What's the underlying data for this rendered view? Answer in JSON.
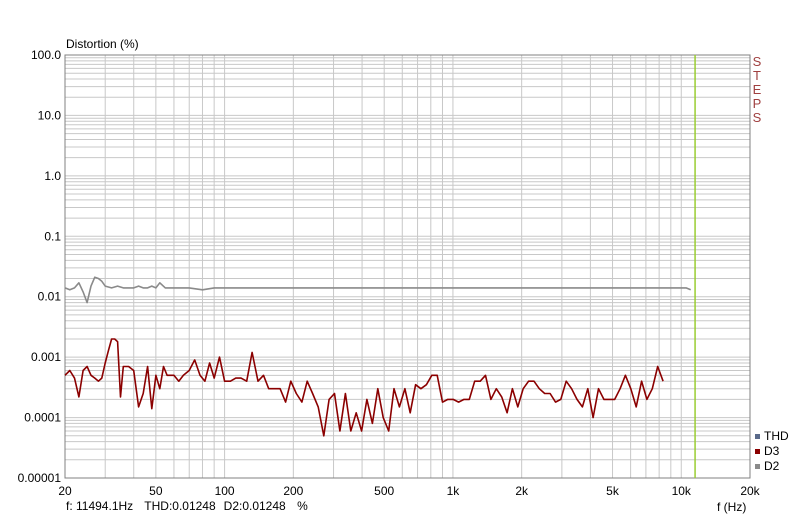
{
  "chart_data": {
    "type": "line",
    "title": "Distortion (%)",
    "xlabel": "f (Hz)",
    "ylabel": "Distortion (%)",
    "x_scale": "log",
    "y_scale": "log",
    "xlim": [
      20,
      20000
    ],
    "ylim": [
      1e-05,
      100
    ],
    "x_ticks": [
      20,
      50,
      100,
      200,
      500,
      1000,
      2000,
      5000,
      10000,
      20000
    ],
    "x_tick_labels": [
      "20",
      "50",
      "100",
      "200",
      "500",
      "1k",
      "2k",
      "5k",
      "10k",
      "20k"
    ],
    "y_ticks": [
      1e-05,
      0.0001,
      0.001,
      0.01,
      0.1,
      1,
      10,
      100
    ],
    "y_tick_labels": [
      "0.00001",
      "0.0001",
      "0.001",
      "0.01",
      "0.1",
      "1.0",
      "10.0",
      "100.0"
    ],
    "grid": true,
    "legend_position": "bottom-right",
    "side_label": "STEPS",
    "cursor_x": 11494.1,
    "series": [
      {
        "name": "THD",
        "color": "#5a6a8a",
        "x": [],
        "y": []
      },
      {
        "name": "D3",
        "color": "#8b0000",
        "x": [
          20,
          21,
          22,
          23,
          24,
          25,
          26,
          27,
          28,
          29,
          30,
          31,
          32,
          33,
          34,
          35,
          36,
          38,
          40,
          42,
          44,
          46,
          48,
          50,
          52,
          54,
          56,
          58,
          60,
          63,
          66,
          70,
          74,
          78,
          82,
          86,
          90,
          95,
          100,
          106,
          112,
          118,
          125,
          132,
          140,
          148,
          156,
          165,
          175,
          185,
          195,
          206,
          218,
          230,
          243,
          257,
          272,
          287,
          303,
          320,
          338,
          357,
          377,
          398,
          420,
          444,
          469,
          495,
          523,
          552,
          583,
          616,
          650,
          686,
          724,
          765,
          808,
          853,
          900,
          950,
          1003,
          1059,
          1118,
          1180,
          1246,
          1316,
          1389,
          1467,
          1549,
          1635,
          1726,
          1822,
          1924,
          2031,
          2144,
          2264,
          2390,
          2523,
          2664,
          2812,
          2969,
          3135,
          3310,
          3494,
          3689,
          3895,
          4112,
          4341,
          4583,
          4839,
          5109,
          5394,
          5694,
          6012,
          6347,
          6701,
          7074,
          7469,
          7885,
          8325
        ],
        "y": [
          0.0005,
          0.0006,
          0.00045,
          0.00022,
          0.0006,
          0.0007,
          0.0005,
          0.00045,
          0.0004,
          0.00045,
          0.0008,
          0.0013,
          0.002,
          0.002,
          0.0018,
          0.00022,
          0.0007,
          0.0007,
          0.0006,
          0.00015,
          0.00025,
          0.0007,
          0.00014,
          0.0005,
          0.0003,
          0.0007,
          0.0005,
          0.0005,
          0.0005,
          0.0004,
          0.0005,
          0.0006,
          0.0009,
          0.0005,
          0.0004,
          0.0008,
          0.00045,
          0.001,
          0.0004,
          0.0004,
          0.00045,
          0.00045,
          0.0004,
          0.0012,
          0.0004,
          0.0005,
          0.0003,
          0.0003,
          0.0003,
          0.00018,
          0.0004,
          0.00025,
          0.00018,
          0.0004,
          0.00025,
          0.00015,
          5e-05,
          0.0002,
          0.00025,
          6e-05,
          0.00025,
          6e-05,
          0.00012,
          6e-05,
          0.0002,
          8e-05,
          0.0003,
          0.0001,
          6e-05,
          0.0003,
          0.00015,
          0.0003,
          0.00012,
          0.00035,
          0.0003,
          0.00035,
          0.0005,
          0.0005,
          0.00018,
          0.0002,
          0.0002,
          0.00018,
          0.0002,
          0.0002,
          0.0004,
          0.0004,
          0.0005,
          0.0002,
          0.0003,
          0.00022,
          0.00012,
          0.0003,
          0.00015,
          0.0003,
          0.0004,
          0.0004,
          0.0003,
          0.00025,
          0.00025,
          0.00018,
          0.0002,
          0.0004,
          0.0003,
          0.0002,
          0.00015,
          0.0003,
          0.0001,
          0.0003,
          0.0002,
          0.0002,
          0.0002,
          0.0003,
          0.0005,
          0.0003,
          0.00015,
          0.0004,
          0.0002,
          0.0003,
          0.0007,
          0.0004
        ]
      },
      {
        "name": "D2",
        "color": "#8a8a8a",
        "x": [
          20,
          21,
          22,
          23,
          24,
          25,
          26,
          27,
          28,
          29,
          30,
          32,
          34,
          36,
          38,
          40,
          42,
          44,
          46,
          48,
          50,
          52,
          55,
          60,
          70,
          80,
          90,
          100,
          120,
          150,
          200,
          300,
          500,
          700,
          1000,
          1500,
          2000,
          3000,
          5000,
          7000,
          9000,
          10000,
          10500,
          11000
        ],
        "y": [
          0.014,
          0.013,
          0.014,
          0.017,
          0.012,
          0.008,
          0.015,
          0.021,
          0.02,
          0.018,
          0.015,
          0.014,
          0.015,
          0.014,
          0.014,
          0.014,
          0.015,
          0.014,
          0.014,
          0.015,
          0.014,
          0.017,
          0.014,
          0.014,
          0.014,
          0.013,
          0.014,
          0.014,
          0.014,
          0.014,
          0.014,
          0.014,
          0.014,
          0.014,
          0.014,
          0.014,
          0.014,
          0.014,
          0.014,
          0.014,
          0.014,
          0.014,
          0.014,
          0.013
        ]
      }
    ]
  },
  "readout": {
    "freq": "f: 11494.1Hz",
    "thd": "THD:0.01248",
    "d2": "D2:0.01248",
    "unit": "%"
  },
  "colors": {
    "grid": "#c8c8c8",
    "cursor": "#9acd32",
    "side": "#a04040"
  }
}
